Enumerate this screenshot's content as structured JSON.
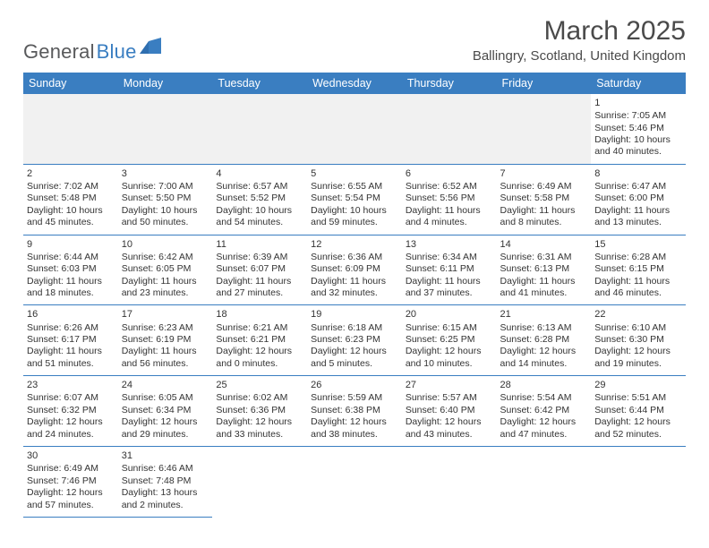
{
  "brand": {
    "name1": "General",
    "name2": "Blue",
    "mark_color": "#2f6fb0"
  },
  "title": "March 2025",
  "subtitle": "Ballingry, Scotland, United Kingdom",
  "colors": {
    "header_bg": "#3a7ec1",
    "header_text": "#ffffff",
    "rule": "#3a7ec1",
    "blank_row": "#f1f1f1",
    "text": "#333333"
  },
  "day_headers": [
    "Sunday",
    "Monday",
    "Tuesday",
    "Wednesday",
    "Thursday",
    "Friday",
    "Saturday"
  ],
  "weeks": [
    [
      null,
      null,
      null,
      null,
      null,
      null,
      {
        "n": "1",
        "sr": "Sunrise: 7:05 AM",
        "ss": "Sunset: 5:46 PM",
        "d1": "Daylight: 10 hours",
        "d2": "and 40 minutes."
      }
    ],
    [
      {
        "n": "2",
        "sr": "Sunrise: 7:02 AM",
        "ss": "Sunset: 5:48 PM",
        "d1": "Daylight: 10 hours",
        "d2": "and 45 minutes."
      },
      {
        "n": "3",
        "sr": "Sunrise: 7:00 AM",
        "ss": "Sunset: 5:50 PM",
        "d1": "Daylight: 10 hours",
        "d2": "and 50 minutes."
      },
      {
        "n": "4",
        "sr": "Sunrise: 6:57 AM",
        "ss": "Sunset: 5:52 PM",
        "d1": "Daylight: 10 hours",
        "d2": "and 54 minutes."
      },
      {
        "n": "5",
        "sr": "Sunrise: 6:55 AM",
        "ss": "Sunset: 5:54 PM",
        "d1": "Daylight: 10 hours",
        "d2": "and 59 minutes."
      },
      {
        "n": "6",
        "sr": "Sunrise: 6:52 AM",
        "ss": "Sunset: 5:56 PM",
        "d1": "Daylight: 11 hours",
        "d2": "and 4 minutes."
      },
      {
        "n": "7",
        "sr": "Sunrise: 6:49 AM",
        "ss": "Sunset: 5:58 PM",
        "d1": "Daylight: 11 hours",
        "d2": "and 8 minutes."
      },
      {
        "n": "8",
        "sr": "Sunrise: 6:47 AM",
        "ss": "Sunset: 6:00 PM",
        "d1": "Daylight: 11 hours",
        "d2": "and 13 minutes."
      }
    ],
    [
      {
        "n": "9",
        "sr": "Sunrise: 6:44 AM",
        "ss": "Sunset: 6:03 PM",
        "d1": "Daylight: 11 hours",
        "d2": "and 18 minutes."
      },
      {
        "n": "10",
        "sr": "Sunrise: 6:42 AM",
        "ss": "Sunset: 6:05 PM",
        "d1": "Daylight: 11 hours",
        "d2": "and 23 minutes."
      },
      {
        "n": "11",
        "sr": "Sunrise: 6:39 AM",
        "ss": "Sunset: 6:07 PM",
        "d1": "Daylight: 11 hours",
        "d2": "and 27 minutes."
      },
      {
        "n": "12",
        "sr": "Sunrise: 6:36 AM",
        "ss": "Sunset: 6:09 PM",
        "d1": "Daylight: 11 hours",
        "d2": "and 32 minutes."
      },
      {
        "n": "13",
        "sr": "Sunrise: 6:34 AM",
        "ss": "Sunset: 6:11 PM",
        "d1": "Daylight: 11 hours",
        "d2": "and 37 minutes."
      },
      {
        "n": "14",
        "sr": "Sunrise: 6:31 AM",
        "ss": "Sunset: 6:13 PM",
        "d1": "Daylight: 11 hours",
        "d2": "and 41 minutes."
      },
      {
        "n": "15",
        "sr": "Sunrise: 6:28 AM",
        "ss": "Sunset: 6:15 PM",
        "d1": "Daylight: 11 hours",
        "d2": "and 46 minutes."
      }
    ],
    [
      {
        "n": "16",
        "sr": "Sunrise: 6:26 AM",
        "ss": "Sunset: 6:17 PM",
        "d1": "Daylight: 11 hours",
        "d2": "and 51 minutes."
      },
      {
        "n": "17",
        "sr": "Sunrise: 6:23 AM",
        "ss": "Sunset: 6:19 PM",
        "d1": "Daylight: 11 hours",
        "d2": "and 56 minutes."
      },
      {
        "n": "18",
        "sr": "Sunrise: 6:21 AM",
        "ss": "Sunset: 6:21 PM",
        "d1": "Daylight: 12 hours",
        "d2": "and 0 minutes."
      },
      {
        "n": "19",
        "sr": "Sunrise: 6:18 AM",
        "ss": "Sunset: 6:23 PM",
        "d1": "Daylight: 12 hours",
        "d2": "and 5 minutes."
      },
      {
        "n": "20",
        "sr": "Sunrise: 6:15 AM",
        "ss": "Sunset: 6:25 PM",
        "d1": "Daylight: 12 hours",
        "d2": "and 10 minutes."
      },
      {
        "n": "21",
        "sr": "Sunrise: 6:13 AM",
        "ss": "Sunset: 6:28 PM",
        "d1": "Daylight: 12 hours",
        "d2": "and 14 minutes."
      },
      {
        "n": "22",
        "sr": "Sunrise: 6:10 AM",
        "ss": "Sunset: 6:30 PM",
        "d1": "Daylight: 12 hours",
        "d2": "and 19 minutes."
      }
    ],
    [
      {
        "n": "23",
        "sr": "Sunrise: 6:07 AM",
        "ss": "Sunset: 6:32 PM",
        "d1": "Daylight: 12 hours",
        "d2": "and 24 minutes."
      },
      {
        "n": "24",
        "sr": "Sunrise: 6:05 AM",
        "ss": "Sunset: 6:34 PM",
        "d1": "Daylight: 12 hours",
        "d2": "and 29 minutes."
      },
      {
        "n": "25",
        "sr": "Sunrise: 6:02 AM",
        "ss": "Sunset: 6:36 PM",
        "d1": "Daylight: 12 hours",
        "d2": "and 33 minutes."
      },
      {
        "n": "26",
        "sr": "Sunrise: 5:59 AM",
        "ss": "Sunset: 6:38 PM",
        "d1": "Daylight: 12 hours",
        "d2": "and 38 minutes."
      },
      {
        "n": "27",
        "sr": "Sunrise: 5:57 AM",
        "ss": "Sunset: 6:40 PM",
        "d1": "Daylight: 12 hours",
        "d2": "and 43 minutes."
      },
      {
        "n": "28",
        "sr": "Sunrise: 5:54 AM",
        "ss": "Sunset: 6:42 PM",
        "d1": "Daylight: 12 hours",
        "d2": "and 47 minutes."
      },
      {
        "n": "29",
        "sr": "Sunrise: 5:51 AM",
        "ss": "Sunset: 6:44 PM",
        "d1": "Daylight: 12 hours",
        "d2": "and 52 minutes."
      }
    ],
    [
      {
        "n": "30",
        "sr": "Sunrise: 6:49 AM",
        "ss": "Sunset: 7:46 PM",
        "d1": "Daylight: 12 hours",
        "d2": "and 57 minutes."
      },
      {
        "n": "31",
        "sr": "Sunrise: 6:46 AM",
        "ss": "Sunset: 7:48 PM",
        "d1": "Daylight: 13 hours",
        "d2": "and 2 minutes."
      },
      null,
      null,
      null,
      null,
      null
    ]
  ]
}
